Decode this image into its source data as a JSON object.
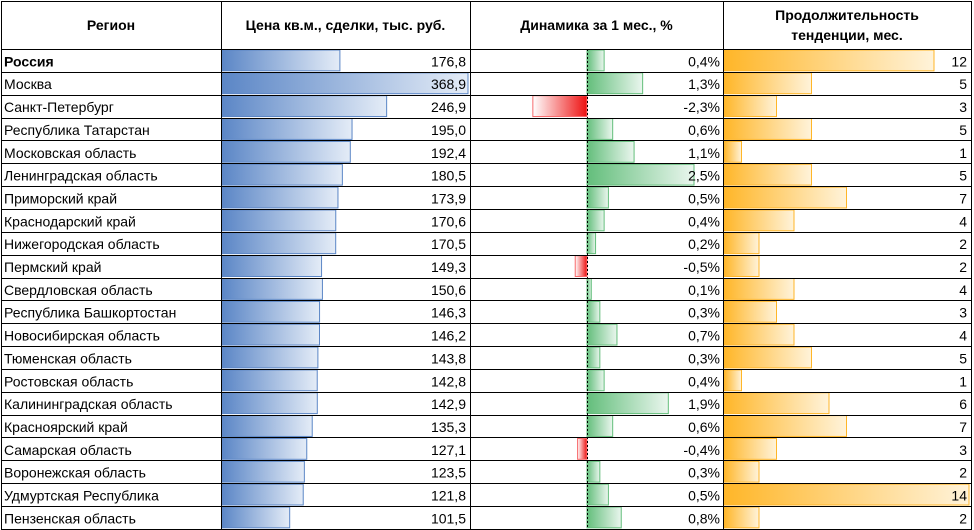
{
  "chart_data": {
    "type": "table",
    "columns": [
      "Регион",
      "Цена кв.м., сделки, тыс. руб.",
      "Динамика за 1 мес., %",
      "Продолжительность тенденции, мес."
    ],
    "rows": [
      {
        "region": "Россия",
        "price": 176.8,
        "price_text": "176,8",
        "change": 0.4,
        "change_text": "0,4%",
        "duration": 12,
        "bold": true
      },
      {
        "region": "Москва",
        "price": 368.9,
        "price_text": "368,9",
        "change": 1.3,
        "change_text": "1,3%",
        "duration": 5
      },
      {
        "region": "Санкт-Петербург",
        "price": 246.9,
        "price_text": "246,9",
        "change": -2.3,
        "change_text": "-2,3%",
        "duration": 3
      },
      {
        "region": "Республика Татарстан",
        "price": 195.0,
        "price_text": "195,0",
        "change": 0.6,
        "change_text": "0,6%",
        "duration": 5
      },
      {
        "region": "Московская область",
        "price": 192.4,
        "price_text": "192,4",
        "change": 1.1,
        "change_text": "1,1%",
        "duration": 1
      },
      {
        "region": "Ленинградская область",
        "price": 180.5,
        "price_text": "180,5",
        "change": 2.5,
        "change_text": "2,5%",
        "duration": 5
      },
      {
        "region": "Приморский край",
        "price": 173.9,
        "price_text": "173,9",
        "change": 0.5,
        "change_text": "0,5%",
        "duration": 7
      },
      {
        "region": "Краснодарский край",
        "price": 170.6,
        "price_text": "170,6",
        "change": 0.4,
        "change_text": "0,4%",
        "duration": 4
      },
      {
        "region": "Нижегородская область",
        "price": 170.5,
        "price_text": "170,5",
        "change": 0.2,
        "change_text": "0,2%",
        "duration": 2
      },
      {
        "region": "Пермский край",
        "price": 149.3,
        "price_text": "149,3",
        "change": -0.5,
        "change_text": "-0,5%",
        "duration": 2
      },
      {
        "region": "Свердловская область",
        "price": 150.6,
        "price_text": "150,6",
        "change": 0.1,
        "change_text": "0,1%",
        "duration": 4
      },
      {
        "region": "Республика Башкортостан",
        "price": 146.3,
        "price_text": "146,3",
        "change": 0.3,
        "change_text": "0,3%",
        "duration": 3
      },
      {
        "region": "Новосибирская область",
        "price": 146.2,
        "price_text": "146,2",
        "change": 0.7,
        "change_text": "0,7%",
        "duration": 4
      },
      {
        "region": "Тюменская область",
        "price": 143.8,
        "price_text": "143,8",
        "change": 0.3,
        "change_text": "0,3%",
        "duration": 5
      },
      {
        "region": "Ростовская область",
        "price": 142.8,
        "price_text": "142,8",
        "change": 0.4,
        "change_text": "0,4%",
        "duration": 1
      },
      {
        "region": "Калининградская область",
        "price": 142.9,
        "price_text": "142,9",
        "change": 1.9,
        "change_text": "1,9%",
        "duration": 6
      },
      {
        "region": "Красноярский край",
        "price": 135.3,
        "price_text": "135,3",
        "change": 0.6,
        "change_text": "0,6%",
        "duration": 7
      },
      {
        "region": "Самарская область",
        "price": 127.1,
        "price_text": "127,1",
        "change": -0.4,
        "change_text": "-0,4%",
        "duration": 3
      },
      {
        "region": "Воронежская область",
        "price": 123.5,
        "price_text": "123,5",
        "change": 0.3,
        "change_text": "0,3%",
        "duration": 2
      },
      {
        "region": "Удмуртская Республика",
        "price": 121.8,
        "price_text": "121,8",
        "change": 0.5,
        "change_text": "0,5%",
        "duration": 14
      },
      {
        "region": "Пензенская область",
        "price": 101.5,
        "price_text": "101,5",
        "change": 0.8,
        "change_text": "0,8%",
        "duration": 2
      }
    ],
    "colors": {
      "price_bar": "#5b86c6",
      "price_bar_light": "#e4ecf7",
      "change_pos": "#63be7b",
      "change_pos_light": "#eaf6ee",
      "change_neg": "#f8696b",
      "change_neg_dark": "#ee1010",
      "duration_bar": "#ffb628",
      "duration_bar_light": "#fff3da",
      "grid": "#000000"
    }
  }
}
